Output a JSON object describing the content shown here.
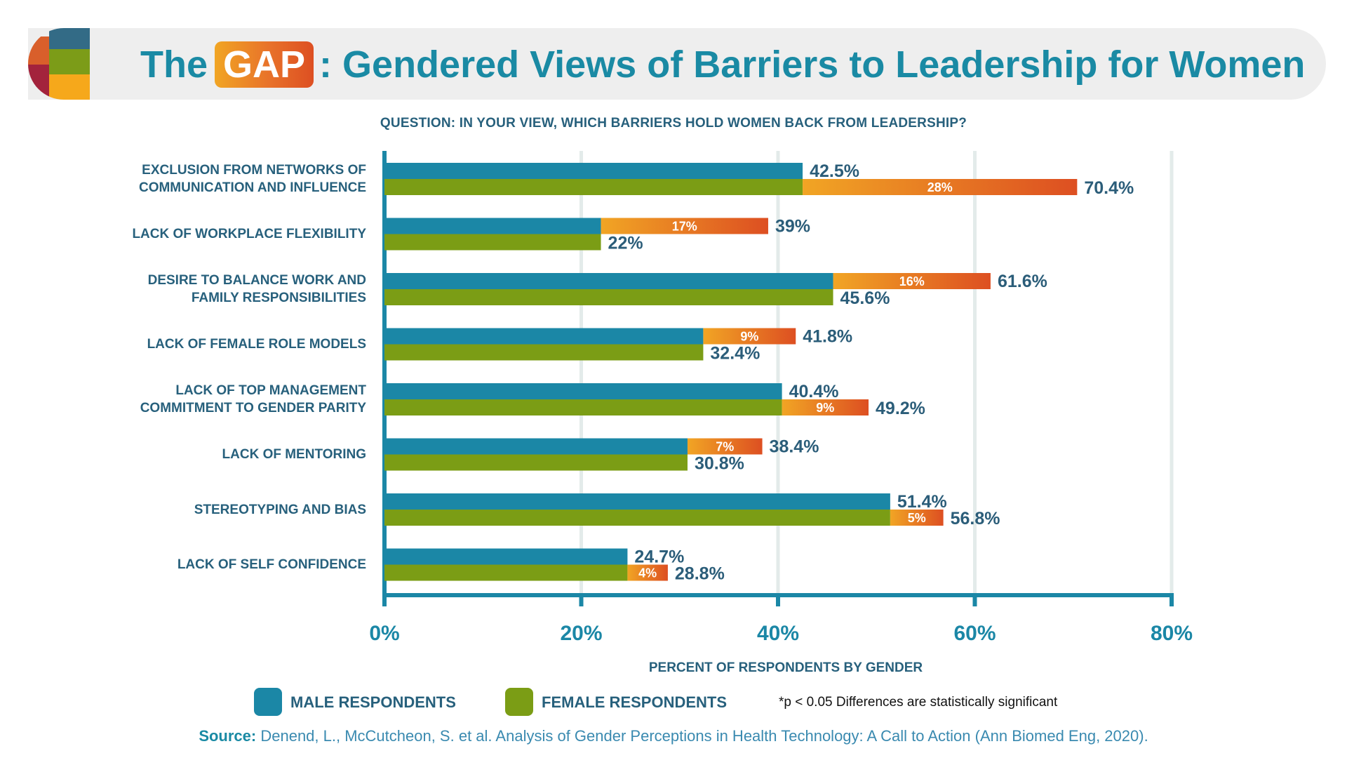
{
  "header": {
    "title_prefix": "The",
    "title_highlight": "GAP",
    "title_suffix": ": Gendered Views of Barriers to Leadership for Women",
    "logo_colors": [
      "#336b86",
      "#d95f2b",
      "#7c9c18",
      "#a3233c",
      "#f6a81b"
    ]
  },
  "question": "QUESTION: IN YOUR VIEW, WHICH BARRIERS HOLD WOMEN BACK FROM LEADERSHIP?",
  "colors": {
    "male": "#1b87a6",
    "female": "#7b9d15",
    "gap_start": "#f1a524",
    "gap_end": "#dd4f22",
    "axis": "#1b87a6",
    "grid": "#e3ebea",
    "text": "#27607c",
    "value_text": "#2b5d79"
  },
  "legend": {
    "male": "MALE RESPONDENTS",
    "female": "FEMALE RESPONDENTS",
    "footnote": "*p < 0.05 Differences are statistically significant"
  },
  "source": {
    "label": "Source:",
    "text": " Denend, L., McCutcheon, S. et al. Analysis of Gender Perceptions in Health Technology: A Call to Action (Ann Biomed Eng, 2020)."
  },
  "chart_data": {
    "type": "bar",
    "orientation": "horizontal",
    "title": "The GAP: Gendered Views of Barriers to Leadership for Women",
    "subtitle": "QUESTION: IN YOUR VIEW, WHICH BARRIERS HOLD WOMEN BACK FROM LEADERSHIP?",
    "xlabel": "PERCENT OF RESPONDENTS BY GENDER",
    "ylabel": "",
    "xlim": [
      0,
      80
    ],
    "xticks": [
      0,
      20,
      40,
      60,
      80
    ],
    "xtick_labels": [
      "0%",
      "20%",
      "40%",
      "60%",
      "80%"
    ],
    "grid": true,
    "legend_position": "bottom",
    "categories": [
      "EXCLUSION FROM NETWORKS OF\nCOMMUNICATION AND INFLUENCE",
      "LACK OF WORKPLACE FLEXIBILITY",
      "DESIRE TO BALANCE WORK AND\nFAMILY RESPONSIBILITIES",
      "LACK OF FEMALE ROLE MODELS",
      "LACK OF TOP MANAGEMENT\nCOMMITMENT TO GENDER PARITY",
      "LACK OF MENTORING",
      "STEREOTYPING AND BIAS",
      "LACK OF SELF CONFIDENCE"
    ],
    "series": [
      {
        "name": "MALE RESPONDENTS",
        "values": [
          42.5,
          39,
          61.6,
          41.8,
          40.4,
          38.4,
          51.4,
          24.7
        ],
        "labels": [
          "42.5%",
          "39%",
          "61.6%",
          "41.8%",
          "40.4%",
          "38.4%",
          "51.4%",
          "24.7%"
        ]
      },
      {
        "name": "FEMALE RESPONDENTS",
        "values": [
          70.4,
          22,
          45.6,
          32.4,
          49.2,
          30.8,
          56.8,
          28.8
        ],
        "labels": [
          "70.4%",
          "22%",
          "45.6%",
          "32.4%",
          "49.2%",
          "30.8%",
          "56.8%",
          "28.8%"
        ]
      }
    ],
    "gap_labels": [
      "28%",
      "17%",
      "16%",
      "9%",
      "9%",
      "7%",
      "5%",
      "4%"
    ]
  }
}
